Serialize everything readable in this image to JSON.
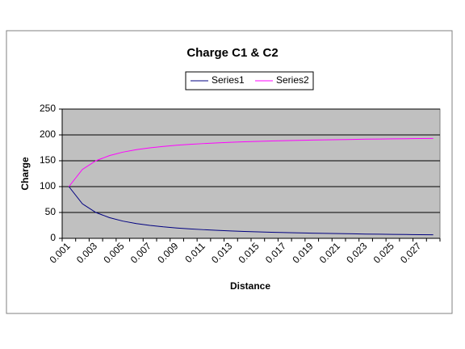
{
  "chart_data": {
    "type": "line",
    "title": "Charge C1 & C2",
    "x_label": "Distance",
    "y_label": "Charge",
    "categories": [
      "0.001",
      null,
      "0.003",
      null,
      "0.005",
      null,
      "0.007",
      null,
      "0.009",
      null,
      "0.011",
      null,
      "0.013",
      null,
      "0.015",
      null,
      "0.017",
      null,
      "0.019",
      null,
      "0.021",
      null,
      "0.023",
      null,
      "0.025",
      null,
      "0.027",
      null
    ],
    "series": [
      {
        "name": "Series1",
        "color": "#000080",
        "values": [
          100,
          66.7,
          50,
          40,
          33.3,
          28.6,
          25,
          22.2,
          20,
          18.2,
          16.7,
          15.4,
          14.3,
          13.3,
          12.5,
          11.8,
          11.1,
          10.5,
          10,
          9.5,
          9.1,
          8.7,
          8.3,
          8,
          7.7,
          7.4,
          7.1,
          6.9
        ]
      },
      {
        "name": "Series2",
        "color": "#ff00ff",
        "values": [
          100,
          133.3,
          150,
          160,
          166.7,
          171.4,
          175,
          177.8,
          180,
          181.8,
          183.3,
          184.6,
          185.7,
          186.7,
          187.5,
          188.2,
          188.9,
          189.5,
          190,
          190.5,
          190.9,
          191.3,
          191.7,
          192,
          192.3,
          192.6,
          192.9,
          193.1
        ]
      }
    ],
    "ylim": [
      0,
      250
    ],
    "yticks": [
      0,
      50,
      100,
      150,
      200,
      250
    ],
    "grid": true,
    "legend": "top",
    "plot_background": "#c0c0c0"
  }
}
